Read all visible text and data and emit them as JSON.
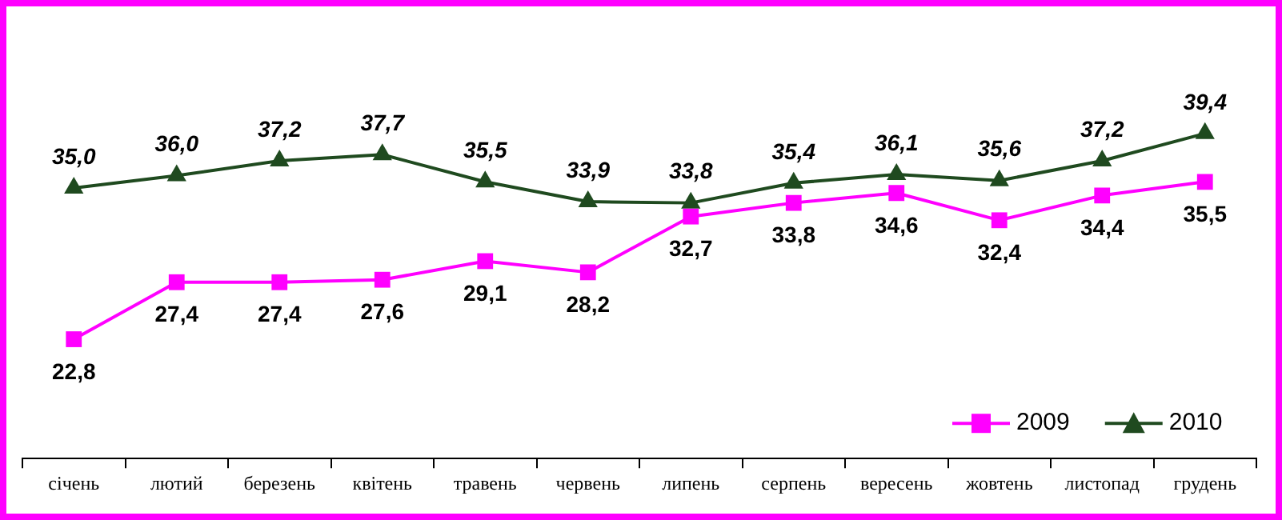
{
  "chart_data": {
    "type": "line",
    "categories": [
      "січень",
      "лютий",
      "березень",
      "квітень",
      "травень",
      "червень",
      "липень",
      "серпень",
      "вересень",
      "жовтень",
      "листопад",
      "грудень"
    ],
    "series": [
      {
        "name": "2009",
        "color": "#ff00ff",
        "marker": "square",
        "values": [
          22.8,
          27.4,
          27.4,
          27.6,
          29.1,
          28.2,
          32.7,
          33.8,
          34.6,
          32.4,
          34.4,
          35.5
        ],
        "value_labels": [
          "22,8",
          "27,4",
          "27,4",
          "27,6",
          "29,1",
          "28,2",
          "32,7",
          "33,8",
          "34,6",
          "32,4",
          "34,4",
          "35,5"
        ]
      },
      {
        "name": "2010",
        "color": "#1f4a1f",
        "marker": "triangle",
        "values": [
          35.0,
          36.0,
          37.2,
          37.7,
          35.5,
          33.9,
          33.8,
          35.4,
          36.1,
          35.6,
          37.2,
          39.4
        ],
        "value_labels": [
          "35,0",
          "36,0",
          "37,2",
          "37,7",
          "35,5",
          "33,9",
          "33,8",
          "35,4",
          "36,1",
          "35,6",
          "37,2",
          "39,4"
        ]
      }
    ],
    "grid": false,
    "legend": "bottom right",
    "tick_labels": "x",
    "line_style": "solid"
  }
}
